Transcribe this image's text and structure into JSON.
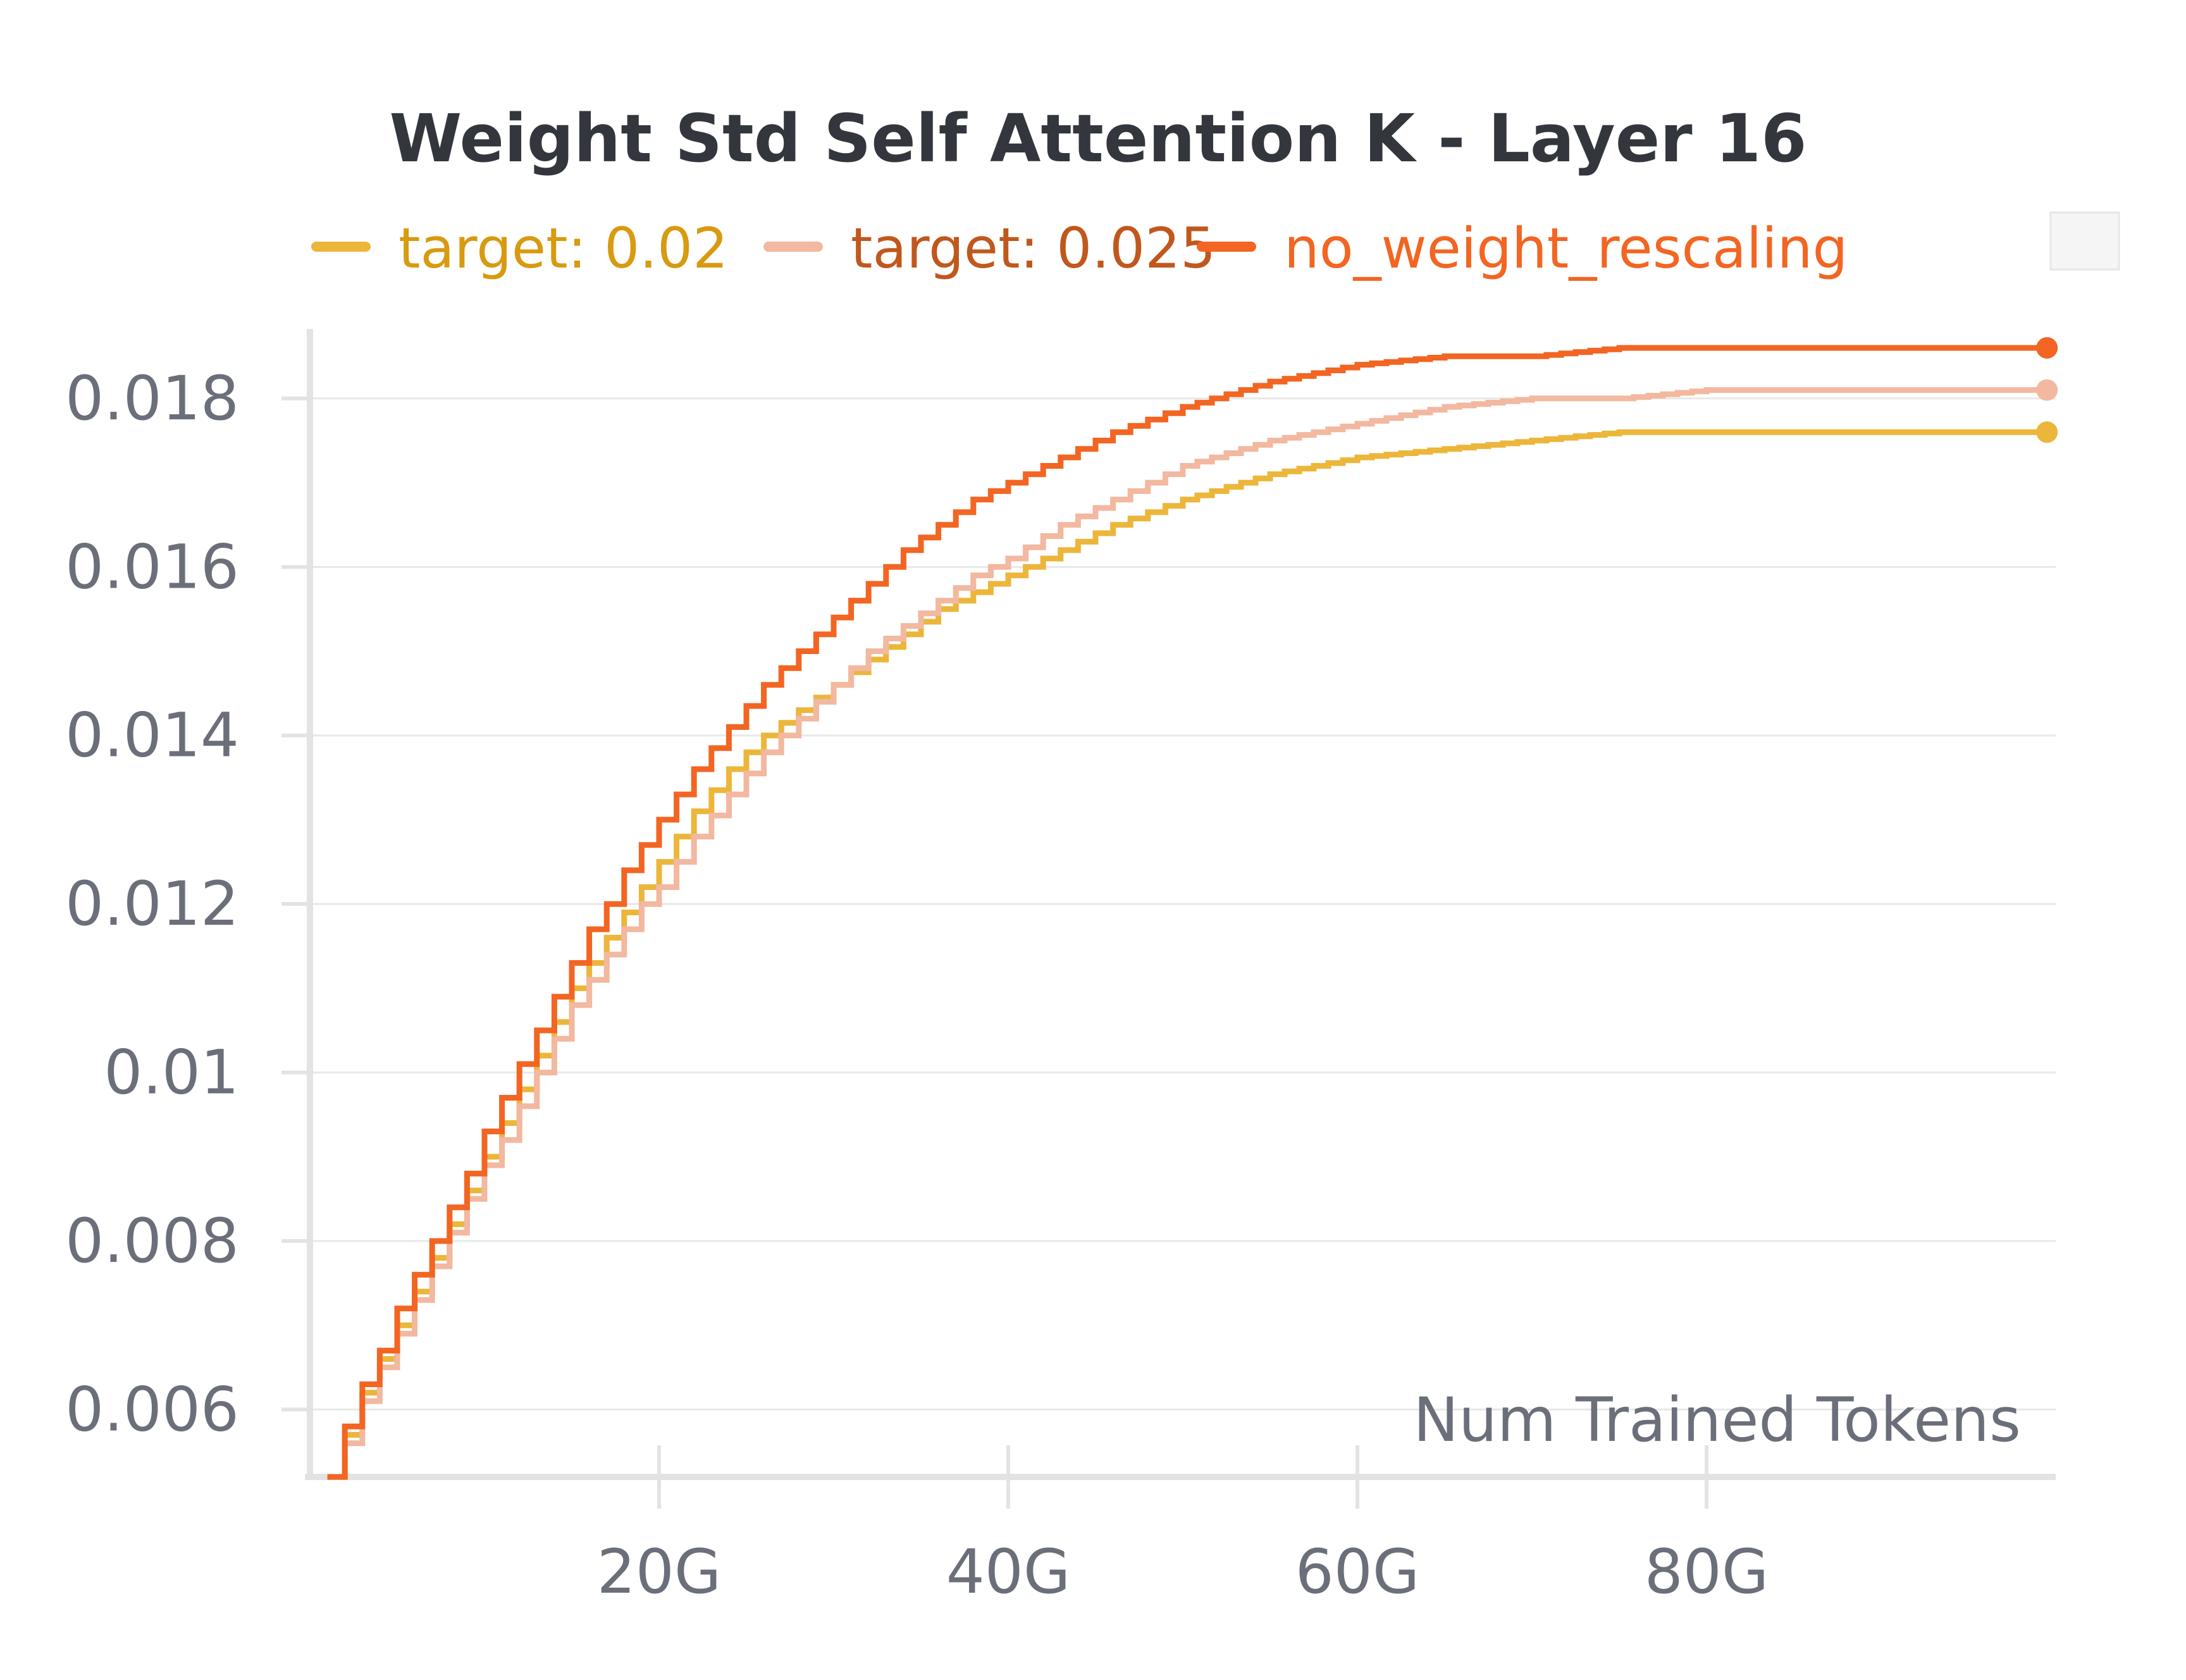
{
  "chart_data": {
    "type": "line",
    "title": "Weight Std Self Attention K - Layer 16",
    "xlabel": "Num Trained Tokens",
    "ylabel": "",
    "xlim": [
      0,
      100
    ],
    "ylim": [
      0.0052,
      0.0189
    ],
    "x_unit": "G",
    "xticks": [
      20,
      40,
      60,
      80
    ],
    "xtick_labels": [
      "20G",
      "40G",
      "60G",
      "80G"
    ],
    "yticks": [
      0.006,
      0.008,
      0.01,
      0.012,
      0.014,
      0.016,
      0.018
    ],
    "ytick_labels": [
      "0.006",
      "0.008",
      "0.01",
      "0.012",
      "0.014",
      "0.016",
      "0.018"
    ],
    "grid": true,
    "legend_position": "top",
    "step": true,
    "x": [
      1,
      2,
      3,
      4,
      5,
      6,
      7,
      8,
      9,
      10,
      11,
      12,
      13,
      14,
      15,
      16,
      17,
      18,
      19,
      20,
      22,
      24,
      26,
      28,
      30,
      32,
      34,
      36,
      38,
      40,
      43,
      46,
      50,
      55,
      60,
      65,
      70,
      75,
      80,
      85,
      90,
      95,
      99.5
    ],
    "series": [
      {
        "name": "target: 0.02",
        "color": "#ecb63a",
        "values": [
          0.0052,
          0.0057,
          0.0062,
          0.0066,
          0.007,
          0.0074,
          0.0078,
          0.0082,
          0.0086,
          0.009,
          0.0094,
          0.0098,
          0.0102,
          0.0106,
          0.011,
          0.0113,
          0.0116,
          0.0119,
          0.0122,
          0.0125,
          0.0131,
          0.0136,
          0.014,
          0.0143,
          0.0146,
          0.0149,
          0.0152,
          0.0155,
          0.0157,
          0.0159,
          0.0162,
          0.0165,
          0.0168,
          0.0171,
          0.0173,
          0.0174,
          0.0175,
          0.0176,
          0.0176,
          0.0176,
          0.0176,
          0.0176,
          0.0176
        ]
      },
      {
        "name": "target: 0.025",
        "color": "#f2b8a0",
        "values": [
          0.0052,
          0.0056,
          0.0061,
          0.0065,
          0.0069,
          0.0073,
          0.0077,
          0.0081,
          0.0085,
          0.0089,
          0.0092,
          0.0096,
          0.01,
          0.0104,
          0.0108,
          0.0111,
          0.0114,
          0.0117,
          0.012,
          0.0122,
          0.0128,
          0.0133,
          0.0138,
          0.0142,
          0.0146,
          0.015,
          0.0153,
          0.0156,
          0.0159,
          0.0161,
          0.0165,
          0.0168,
          0.0172,
          0.0175,
          0.0177,
          0.0179,
          0.018,
          0.018,
          0.0181,
          0.0181,
          0.0181,
          0.0181,
          0.0181
        ]
      },
      {
        "name": "no_weight_rescaling",
        "color": "#f26522",
        "values": [
          0.0052,
          0.0058,
          0.0063,
          0.0067,
          0.0072,
          0.0076,
          0.008,
          0.0084,
          0.0088,
          0.0093,
          0.0097,
          0.0101,
          0.0105,
          0.0109,
          0.0113,
          0.0117,
          0.012,
          0.0124,
          0.0127,
          0.013,
          0.0136,
          0.0141,
          0.0146,
          0.015,
          0.0154,
          0.0158,
          0.0162,
          0.0165,
          0.0168,
          0.017,
          0.0173,
          0.0176,
          0.0179,
          0.0182,
          0.0184,
          0.0185,
          0.0185,
          0.0186,
          0.0186,
          0.0186,
          0.0186,
          0.0186,
          0.0186
        ]
      }
    ]
  }
}
